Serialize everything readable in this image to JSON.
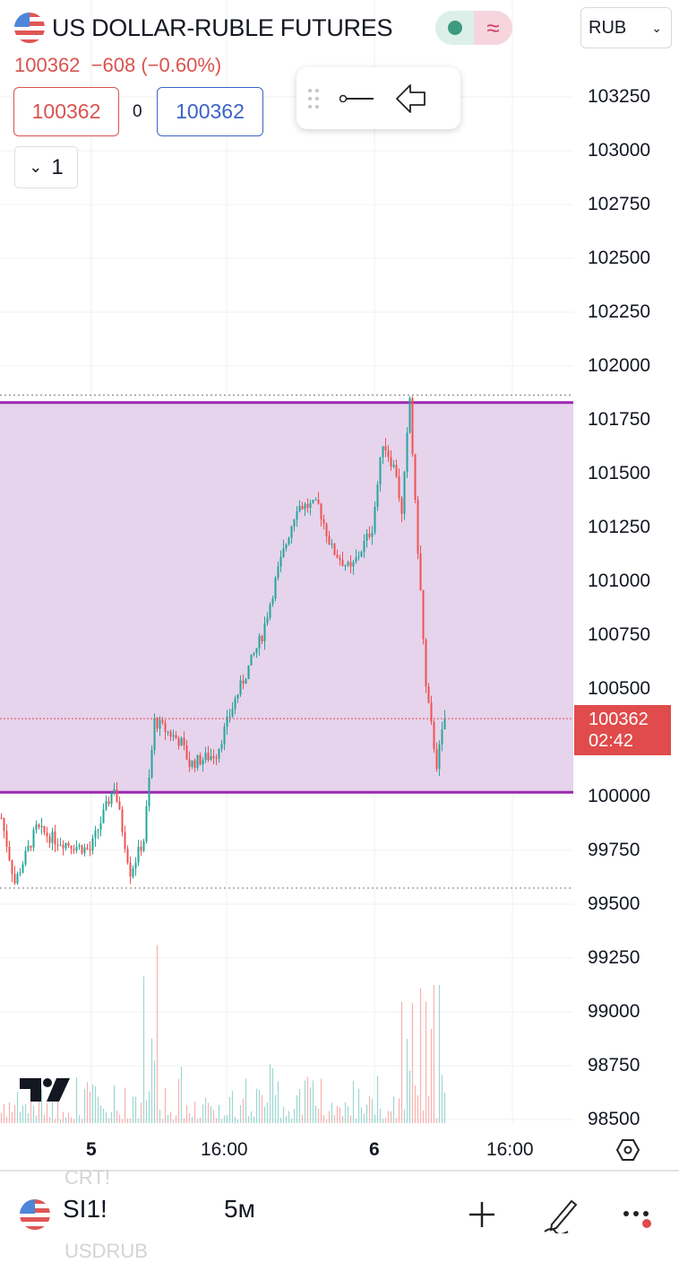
{
  "header": {
    "title": "US DOLLAR-RUBLE FUTURES",
    "flag_icon": "us-flag-icon",
    "status_market": "market-open-dot",
    "status_delay": "≈",
    "currency": "RUB"
  },
  "quote": {
    "last": "100362",
    "change": "−608 (−0.60%)",
    "bid": "100362",
    "spread": "0",
    "ask": "100362",
    "indicators_count": "1"
  },
  "drawing_toolbar": {
    "icons": [
      "drag-handle-icon",
      "horizontal-ray-icon",
      "arrow-left-icon"
    ]
  },
  "price_axis": {
    "labels": [
      "103250",
      "103000",
      "102750",
      "102500",
      "102250",
      "102000",
      "101750",
      "101500",
      "101250",
      "101000",
      "100750",
      "100500",
      "100000",
      "99750",
      "99500",
      "99250",
      "99000",
      "98750",
      "98500"
    ],
    "current_price": "100362",
    "countdown": "02:42"
  },
  "time_axis": {
    "labels": [
      {
        "text": "5",
        "bold": true
      },
      {
        "text": "16:00",
        "bold": false
      },
      {
        "text": "6",
        "bold": true
      },
      {
        "text": "16:00",
        "bold": false
      }
    ]
  },
  "colors": {
    "up": "#26a69a",
    "down": "#ef5350",
    "rect_fill": "#e6d3ec",
    "rect_border": "#9c27b0",
    "price_line": "#e04b4b"
  },
  "chart_data": {
    "type": "candlestick",
    "interval": "5м",
    "ylim": [
      98500,
      103250
    ],
    "rectangle": {
      "top": 101830,
      "bottom": 100020
    },
    "high_line": 101865,
    "low_line": 99575,
    "price_path": [
      [
        0,
        99900
      ],
      [
        5,
        99600
      ],
      [
        13,
        99850
      ],
      [
        20,
        99800
      ],
      [
        33,
        99750
      ],
      [
        42,
        100050
      ],
      [
        48,
        99650
      ],
      [
        53,
        99800
      ],
      [
        57,
        100350
      ],
      [
        67,
        100250
      ],
      [
        70,
        100150
      ],
      [
        80,
        100200
      ],
      [
        87,
        100450
      ],
      [
        97,
        100750
      ],
      [
        103,
        101050
      ],
      [
        110,
        101350
      ],
      [
        118,
        101350
      ],
      [
        123,
        101150
      ],
      [
        130,
        101050
      ],
      [
        138,
        101250
      ],
      [
        142,
        101650
      ],
      [
        147,
        101500
      ],
      [
        149,
        101300
      ],
      [
        152,
        101850
      ],
      [
        154,
        101350
      ],
      [
        156,
        100950
      ],
      [
        158,
        100500
      ],
      [
        162,
        100150
      ],
      [
        165,
        100362
      ]
    ]
  },
  "bottom_bar": {
    "symbol": "SI1!",
    "interval": "5м",
    "ghost_above": "CRT!",
    "ghost_below": "USDRUB"
  }
}
